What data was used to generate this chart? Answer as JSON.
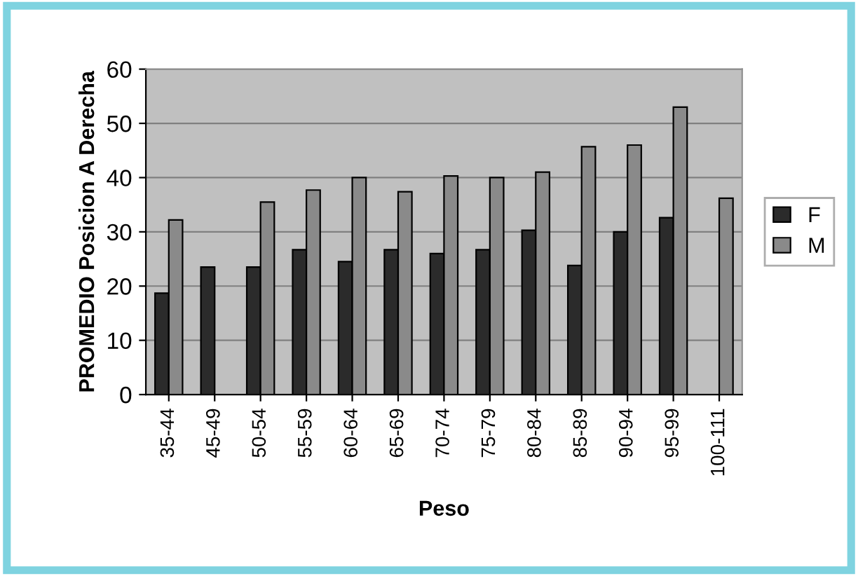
{
  "chart_data": {
    "type": "bar",
    "xlabel": "Peso",
    "ylabel": "PROMEDIO Posicion A Derecha",
    "categories": [
      "35-44",
      "45-49",
      "50-54",
      "55-59",
      "60-64",
      "65-69",
      "70-74",
      "75-79",
      "80-84",
      "85-89",
      "90-94",
      "95-99",
      "100-111"
    ],
    "series": [
      {
        "name": "F",
        "color": "#2b2b2b",
        "values": [
          18.7,
          23.5,
          23.5,
          26.7,
          24.5,
          26.7,
          26,
          26.7,
          30.3,
          23.8,
          30,
          32.6,
          null
        ]
      },
      {
        "name": "M",
        "color": "#8a8a8a",
        "values": [
          32.2,
          null,
          35.5,
          37.7,
          40,
          37.4,
          40.3,
          40,
          41,
          45.7,
          46,
          53,
          36.2
        ]
      }
    ],
    "ylim": [
      0,
      60
    ],
    "yticks": [
      0,
      10,
      20,
      30,
      40,
      50,
      60
    ],
    "grid": "y",
    "legend": "right"
  }
}
